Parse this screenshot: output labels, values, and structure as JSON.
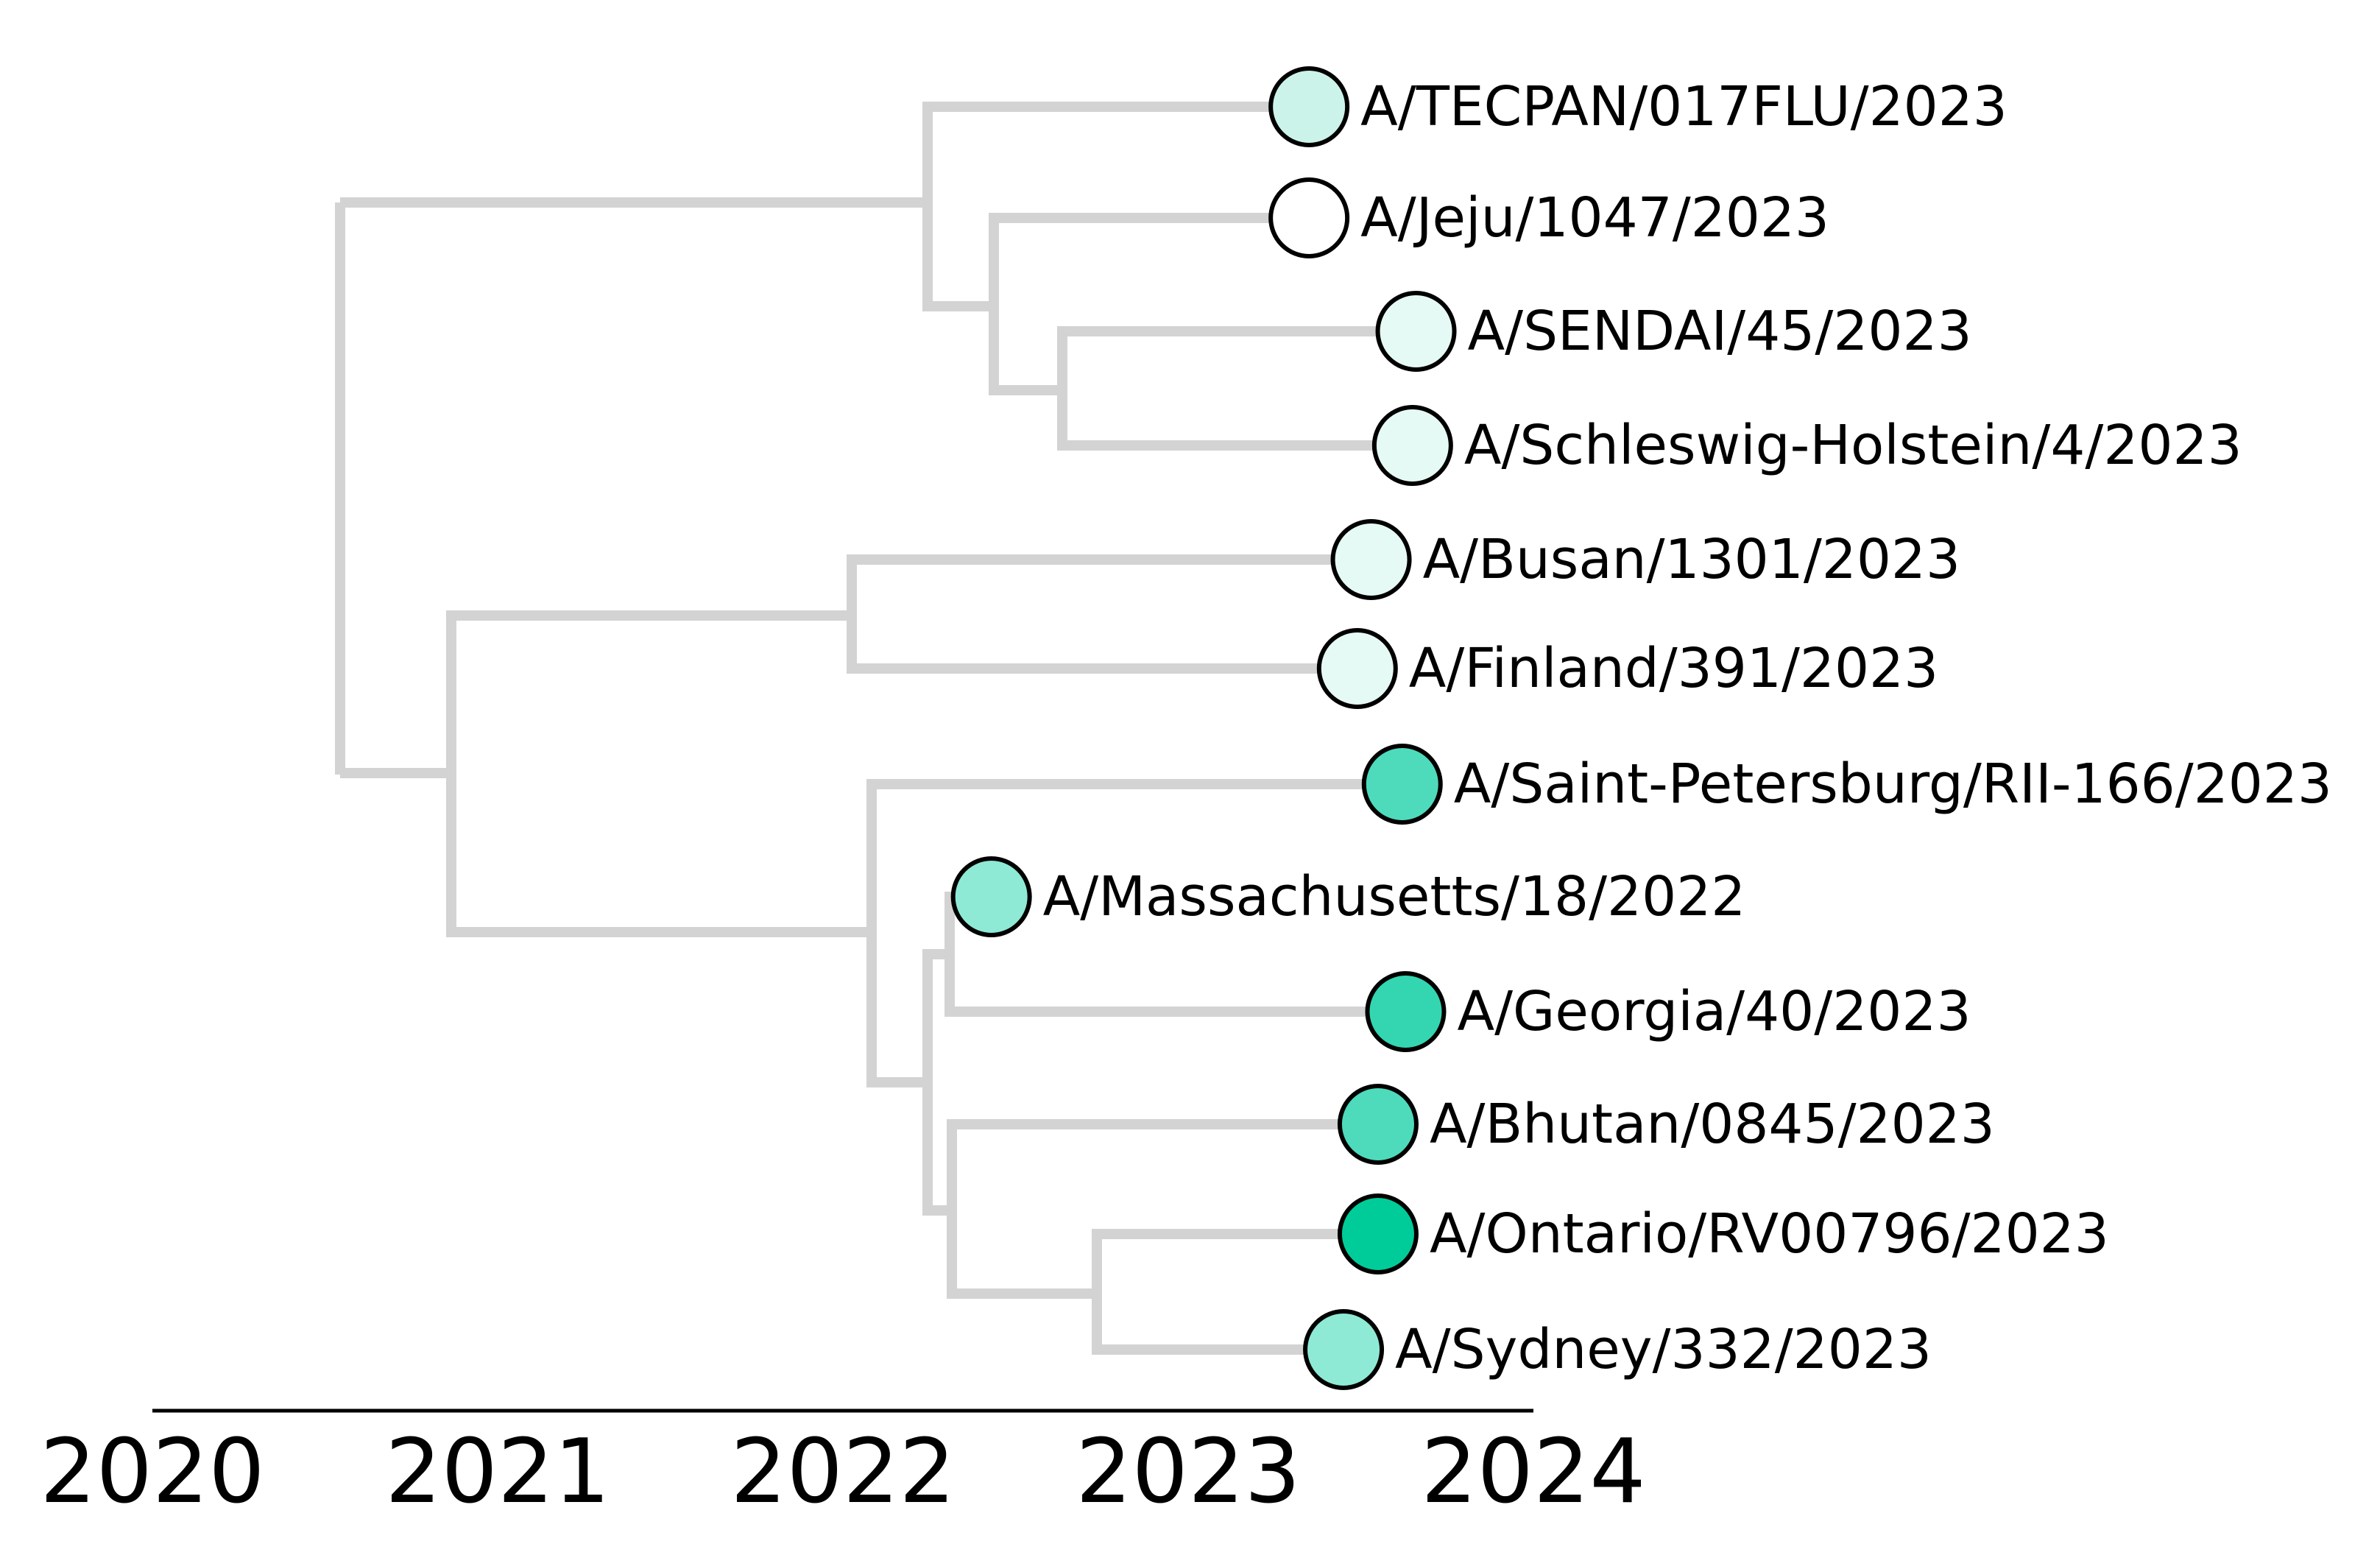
{
  "tree": {
    "axis": {
      "ticks": [
        "2020",
        "2021",
        "2022",
        "2023",
        "2024"
      ],
      "range": [
        2020,
        2024
      ]
    },
    "tips": [
      {
        "name": "A/TECPAN/017FLU/2023",
        "date": 2023.35,
        "color": "#ccf3e9"
      },
      {
        "name": "A/Jeju/1047/2023",
        "date": 2023.35,
        "color": "#ffffff"
      },
      {
        "name": "A/SENDAI/45/2023",
        "date": 2023.66,
        "color": "#e6faf5"
      },
      {
        "name": "A/Schleswig-Holstein/4/2023",
        "date": 2023.65,
        "color": "#e6faf5"
      },
      {
        "name": "A/Busan/1301/2023",
        "date": 2023.53,
        "color": "#e6faf5"
      },
      {
        "name": "A/Finland/391/2023",
        "date": 2023.49,
        "color": "#e6faf5"
      },
      {
        "name": "A/Saint-Petersburg/RII-166/2023",
        "date": 2023.62,
        "color": "#4ddbbb"
      },
      {
        "name": "A/Massachusetts/18/2022",
        "date": 2022.43,
        "color": "#8eead5"
      },
      {
        "name": "A/Georgia/40/2023",
        "date": 2023.63,
        "color": "#33d6b0"
      },
      {
        "name": "A/Bhutan/0845/2023",
        "date": 2023.55,
        "color": "#4ddbbb"
      },
      {
        "name": "A/Ontario/RV00796/2023",
        "date": 2023.55,
        "color": "#00cc99"
      },
      {
        "name": "A/Sydney/332/2023",
        "date": 2023.45,
        "color": "#8eead5"
      }
    ]
  }
}
